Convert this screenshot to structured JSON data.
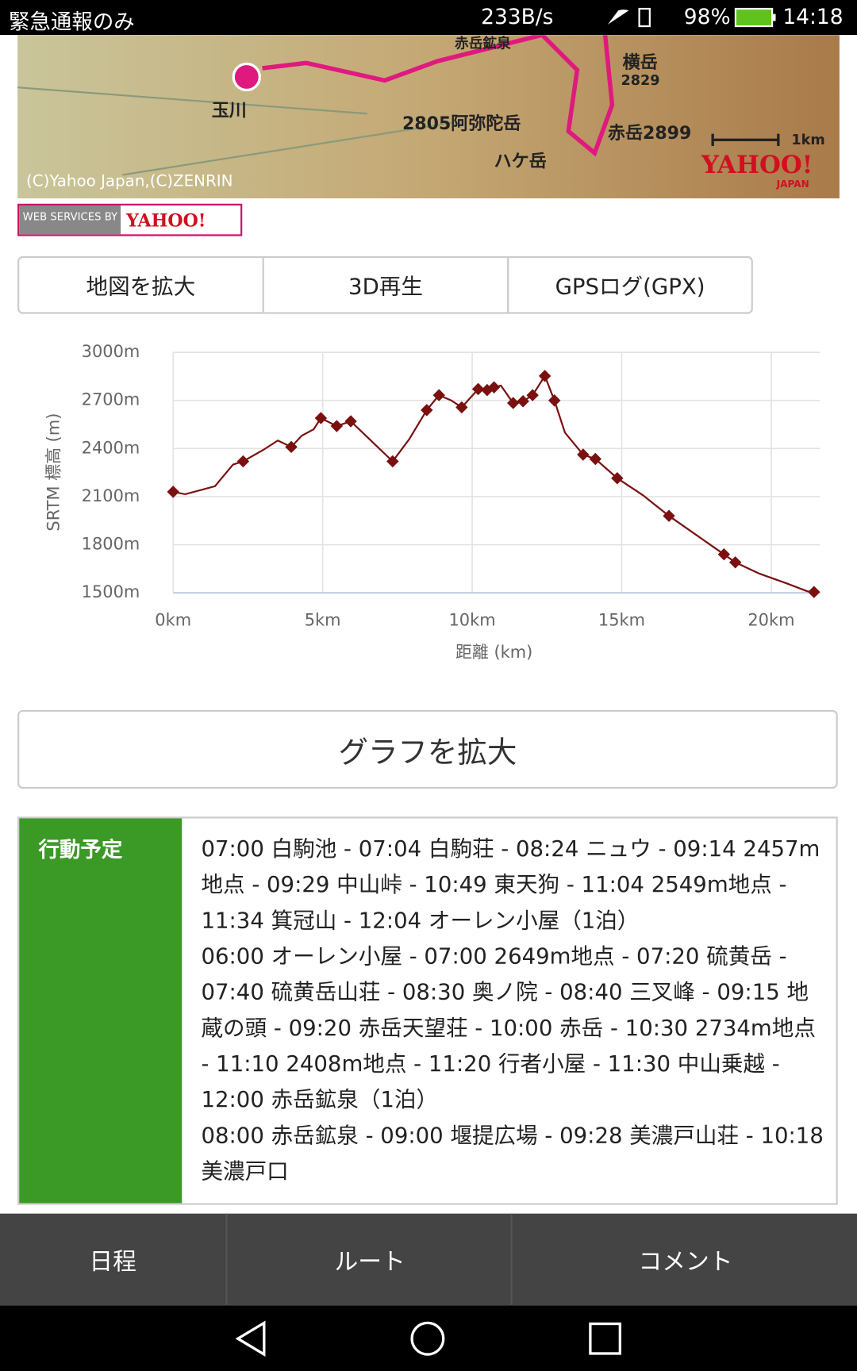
{
  "status_bar": {
    "carrier": "緊急通報のみ",
    "speed": "233B/s",
    "battery": "98%",
    "time": "14:18"
  },
  "map": {
    "labels": [
      "玉川",
      "2805阿弥陀岳",
      "赤岳2899",
      "横岳",
      "2829",
      "ハケ岳",
      "1km",
      "赤岳鉱泉"
    ],
    "copyright": "(C)Yahoo Japan,(C)ZENRIN",
    "logo": "YAHOO!",
    "logo_sub": "JAPAN"
  },
  "badge": {
    "text": "WEB SERVICES BY",
    "logo": "YAHOO!"
  },
  "buttons": [
    "地図を拡大",
    "3D再生",
    "GPSログ(GPX)"
  ],
  "chart_data": {
    "type": "line",
    "y_label": "SRTM 標高 (m)",
    "x_label": "距離 (km)",
    "xlim": [
      0,
      21.64
    ],
    "ylim": [
      1500,
      3000
    ],
    "xticks": [
      {
        "value": 0,
        "label": "0km"
      },
      {
        "value": 5,
        "label": "5km"
      },
      {
        "value": 10,
        "label": "10km"
      },
      {
        "value": 15,
        "label": "15km"
      },
      {
        "value": 20,
        "label": "20km"
      }
    ],
    "yticks": [
      {
        "value": 1500,
        "label": "1500m"
      },
      {
        "value": 1800,
        "label": "1800m"
      },
      {
        "value": 2100,
        "label": "2100m"
      },
      {
        "value": 2400,
        "label": "2400m"
      },
      {
        "value": 2700,
        "label": "2700m"
      },
      {
        "value": 3000,
        "label": "3000m"
      }
    ],
    "grid": true,
    "series": [
      {
        "style": "line",
        "color": "#7a1010",
        "x": [
          0,
          0.4,
          1.4,
          2.0,
          2.34,
          3.0,
          3.5,
          3.95,
          4.3,
          4.7,
          4.94,
          5.47,
          5.94,
          6.5,
          7.34,
          7.9,
          8.48,
          8.89,
          9.3,
          9.65,
          10.2,
          10.5,
          10.73,
          10.96,
          11.37,
          11.7,
          12.02,
          12.43,
          12.75,
          13.1,
          13.71,
          14.12,
          14.85,
          15.7,
          16.58,
          17.5,
          18.42,
          18.8,
          19.6,
          20.5,
          21.2,
          21.43
        ],
        "values": [
          2130,
          2115,
          2165,
          2300,
          2320,
          2390,
          2450,
          2410,
          2480,
          2520,
          2590,
          2540,
          2570,
          2470,
          2320,
          2460,
          2640,
          2733,
          2700,
          2657,
          2771,
          2765,
          2782,
          2793,
          2684,
          2695,
          2733,
          2853,
          2700,
          2500,
          2362,
          2335,
          2215,
          2110,
          1980,
          1860,
          1740,
          1690,
          1620,
          1560,
          1510,
          1505
        ]
      },
      {
        "style": "markers",
        "color": "#7a1010",
        "x": [
          0,
          2.34,
          3.95,
          4.94,
          5.47,
          5.94,
          7.34,
          8.48,
          8.89,
          9.65,
          10.2,
          10.5,
          10.73,
          11.37,
          11.7,
          12.02,
          12.43,
          12.75,
          13.71,
          14.12,
          14.85,
          16.58,
          18.42,
          18.8,
          21.43
        ],
        "values": [
          2130,
          2320,
          2410,
          2590,
          2540,
          2570,
          2320,
          2640,
          2733,
          2657,
          2771,
          2765,
          2782,
          2684,
          2695,
          2733,
          2853,
          2700,
          2362,
          2335,
          2215,
          1980,
          1740,
          1690,
          1505
        ]
      }
    ]
  },
  "graph_button": "グラフを拡大",
  "schedule": {
    "header": "行動予定",
    "days": [
      "07:00 白駒池 - 07:04 白駒荘 - 08:24 ニュウ - 09:14 2457m地点 - 09:29 中山峠 - 10:49 東天狗 - 11:04 2549m地点 - 11:34 箕冠山 - 12:04 オーレン小屋（1泊）",
      "06:00 オーレン小屋 - 07:00 2649m地点 - 07:20 硫黄岳 - 07:40 硫黄岳山荘 - 08:30 奥ノ院 - 08:40 三叉峰 - 09:15 地蔵の頭 - 09:20 赤岳天望荘 - 10:00 赤岳 - 10:30 2734m地点 - 11:10 2408m地点 - 11:20 行者小屋 - 11:30 中山乗越 - 12:00 赤岳鉱泉（1泊）",
      "08:00 赤岳鉱泉 - 09:00 堰提広場 - 09:28 美濃戸山荘 - 10:18 美濃戸口"
    ]
  },
  "tabs": [
    "日程",
    "ルート",
    "コメント"
  ]
}
